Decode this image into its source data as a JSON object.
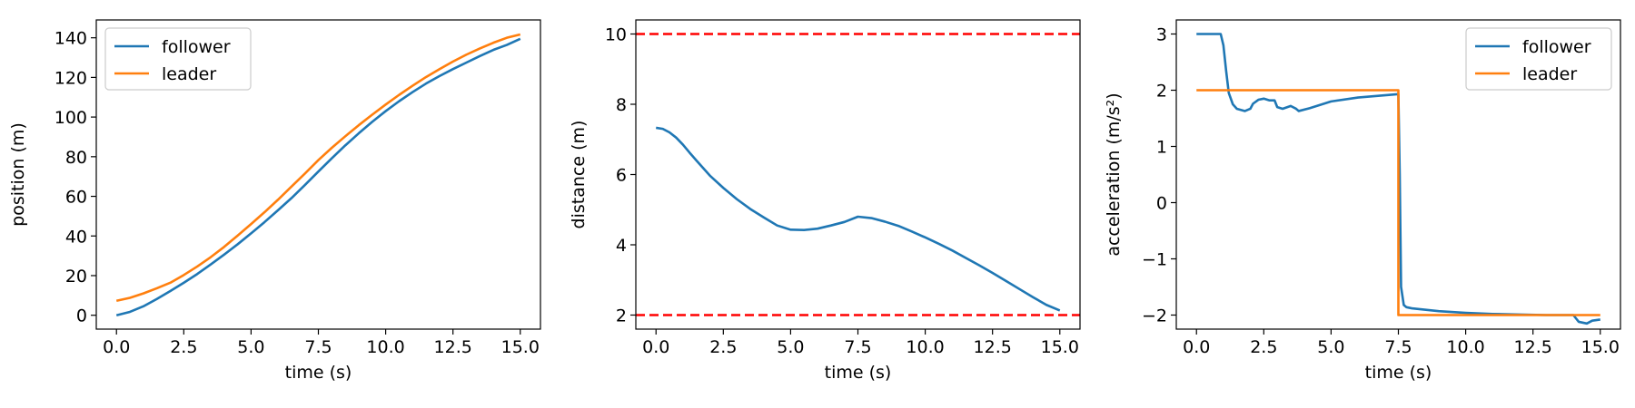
{
  "chart_data": [
    {
      "type": "line",
      "xlabel": "time (s)",
      "ylabel": "position (m)",
      "xlim": [
        -0.75,
        15.75
      ],
      "ylim": [
        -7.0,
        149.0
      ],
      "xticks": [
        0.0,
        2.5,
        5.0,
        7.5,
        10.0,
        12.5,
        15.0
      ],
      "xtick_labels": [
        "0.0",
        "2.5",
        "5.0",
        "7.5",
        "10.0",
        "12.5",
        "15.0"
      ],
      "yticks": [
        0,
        20,
        40,
        60,
        80,
        100,
        120,
        140
      ],
      "ytick_labels": [
        "0",
        "20",
        "40",
        "60",
        "80",
        "100",
        "120",
        "140"
      ],
      "legend": "top-left",
      "grid": false,
      "series": [
        {
          "name": "follower",
          "color": "#1f77b4",
          "x": [
            0,
            0.5,
            1,
            1.5,
            2,
            2.5,
            3,
            3.5,
            4,
            4.5,
            5,
            5.5,
            6,
            6.5,
            7,
            7.5,
            8,
            8.5,
            9,
            9.5,
            10,
            10.5,
            11,
            11.5,
            12,
            12.5,
            13,
            13.5,
            14,
            14.5,
            15
          ],
          "y": [
            0,
            1.7,
            4.5,
            8.2,
            12.2,
            16.4,
            20.8,
            25.6,
            30.6,
            35.8,
            41.3,
            47.0,
            53.0,
            59.1,
            65.7,
            72.5,
            79.2,
            85.7,
            91.8,
            97.6,
            103.0,
            108.0,
            112.6,
            116.9,
            120.7,
            124.2,
            127.5,
            130.8,
            133.9,
            136.4,
            139.5
          ]
        },
        {
          "name": "leader",
          "color": "#ff7f0e",
          "x": [
            0,
            0.5,
            1,
            1.5,
            2,
            2.5,
            3,
            3.5,
            4,
            4.5,
            5,
            5.5,
            6,
            6.5,
            7,
            7.5,
            8,
            8.5,
            9,
            9.5,
            10,
            10.5,
            11,
            11.5,
            12,
            12.5,
            13,
            13.5,
            14,
            14.5,
            15
          ],
          "y": [
            7.3,
            8.8,
            11.0,
            13.6,
            16.4,
            20.3,
            24.6,
            29.3,
            34.5,
            40.2,
            46.0,
            52.0,
            58.3,
            64.9,
            71.5,
            78.3,
            84.5,
            90.3,
            95.9,
            101.2,
            106.3,
            111.2,
            115.8,
            120.2,
            124.2,
            128.0,
            131.5,
            134.6,
            137.5,
            140.0,
            141.7
          ]
        }
      ]
    },
    {
      "type": "line",
      "xlabel": "time (s)",
      "ylabel": "distance (m)",
      "xlim": [
        -0.75,
        15.75
      ],
      "ylim": [
        1.6,
        10.4
      ],
      "xticks": [
        0.0,
        2.5,
        5.0,
        7.5,
        10.0,
        12.5,
        15.0
      ],
      "xtick_labels": [
        "0.0",
        "2.5",
        "5.0",
        "7.5",
        "10.0",
        "12.5",
        "15.0"
      ],
      "yticks": [
        2,
        4,
        6,
        8,
        10
      ],
      "ytick_labels": [
        "2",
        "4",
        "6",
        "8",
        "10"
      ],
      "grid": false,
      "hlines": [
        {
          "y": 10,
          "color": "#ff0000",
          "style": "dashed"
        },
        {
          "y": 2,
          "color": "#ff0000",
          "style": "dashed"
        }
      ],
      "series": [
        {
          "color": "#1f77b4",
          "x": [
            0,
            0.25,
            0.5,
            0.75,
            1,
            1.25,
            1.5,
            2,
            2.5,
            3,
            3.5,
            4,
            4.5,
            5,
            5.5,
            6,
            6.5,
            7,
            7.5,
            8,
            8.5,
            9,
            9.5,
            10,
            10.5,
            11,
            11.5,
            12,
            12.5,
            13,
            13.5,
            14,
            14.5,
            15
          ],
          "y": [
            7.33,
            7.3,
            7.2,
            7.05,
            6.85,
            6.62,
            6.4,
            5.97,
            5.62,
            5.3,
            5.02,
            4.78,
            4.55,
            4.43,
            4.42,
            4.46,
            4.55,
            4.65,
            4.8,
            4.76,
            4.66,
            4.54,
            4.38,
            4.21,
            4.03,
            3.84,
            3.63,
            3.42,
            3.2,
            2.97,
            2.74,
            2.51,
            2.29,
            2.13
          ]
        }
      ]
    },
    {
      "type": "line",
      "xlabel": "time (s)",
      "ylabel": "acceleration (m/s²)",
      "xlim": [
        -0.75,
        15.75
      ],
      "ylim": [
        -2.25,
        3.25
      ],
      "xticks": [
        0.0,
        2.5,
        5.0,
        7.5,
        10.0,
        12.5,
        15.0
      ],
      "xtick_labels": [
        "0.0",
        "2.5",
        "5.0",
        "7.5",
        "10.0",
        "12.5",
        "15.0"
      ],
      "yticks": [
        -2,
        -1,
        0,
        1,
        2,
        3
      ],
      "ytick_labels": [
        "−2",
        "−1",
        "0",
        "1",
        "2",
        "3"
      ],
      "legend": "top-right",
      "grid": false,
      "series": [
        {
          "name": "follower",
          "color": "#1f77b4",
          "x": [
            0,
            0.9,
            1.0,
            1.1,
            1.2,
            1.35,
            1.5,
            1.8,
            2.0,
            2.1,
            2.3,
            2.5,
            2.7,
            2.9,
            3.0,
            3.2,
            3.5,
            3.7,
            3.8,
            4.2,
            5.0,
            6.0,
            7.0,
            7.5,
            7.55,
            7.6,
            7.7,
            7.8,
            8.0,
            9.0,
            10.0,
            11.0,
            12.0,
            13.0,
            14.0,
            14.2,
            14.5,
            14.7,
            15.0
          ],
          "y": [
            3.0,
            3.0,
            2.8,
            2.35,
            1.95,
            1.75,
            1.67,
            1.63,
            1.67,
            1.76,
            1.83,
            1.85,
            1.82,
            1.82,
            1.7,
            1.67,
            1.72,
            1.67,
            1.63,
            1.68,
            1.8,
            1.87,
            1.91,
            1.93,
            0.5,
            -1.5,
            -1.82,
            -1.86,
            -1.88,
            -1.93,
            -1.96,
            -1.98,
            -1.99,
            -2.0,
            -2.0,
            -2.12,
            -2.15,
            -2.1,
            -2.08
          ]
        },
        {
          "name": "leader",
          "color": "#ff7f0e",
          "x": [
            0,
            7.5,
            7.5,
            15.0
          ],
          "y": [
            2.0,
            2.0,
            -2.0,
            -2.0
          ]
        }
      ]
    }
  ]
}
